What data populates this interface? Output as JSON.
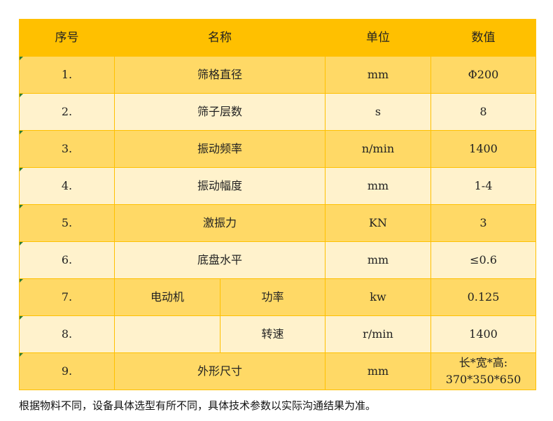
{
  "header": {
    "no": "序号",
    "name": "名称",
    "unit": "单位",
    "value": "数值"
  },
  "rows": [
    {
      "no": "1.",
      "name": "筛格直径",
      "unit": "mm",
      "value": "Φ200"
    },
    {
      "no": "2.",
      "name": "筛子层数",
      "unit": "s",
      "value": "8"
    },
    {
      "no": "3.",
      "name": "振动频率",
      "unit": "n/min",
      "value": "1400"
    },
    {
      "no": "4.",
      "name": "振动幅度",
      "unit": "mm",
      "value": "1-4"
    },
    {
      "no": "5.",
      "name": "激振力",
      "unit": "KN",
      "value": "3"
    },
    {
      "no": "6.",
      "name": "底盘水平",
      "unit": "mm",
      "value": "≤0.6"
    },
    {
      "no": "7.",
      "group": "电动机",
      "name": "功率",
      "unit": "kw",
      "value": "0.125"
    },
    {
      "no": "8.",
      "group": "",
      "name": "转速",
      "unit": "r/min",
      "value": "1400"
    },
    {
      "no": "9.",
      "name": "外形尺寸",
      "unit": "mm",
      "value_line1": "长*宽*高:",
      "value_line2": "370*350*650"
    }
  ],
  "note": "根据物料不同，设备具体选型有所不同，具体技术参数以实际沟通结果为准。",
  "colors": {
    "header": "#FFC000",
    "row_dark": "#FFD966",
    "row_light": "#FFF2CC",
    "border": "#FFC000"
  }
}
